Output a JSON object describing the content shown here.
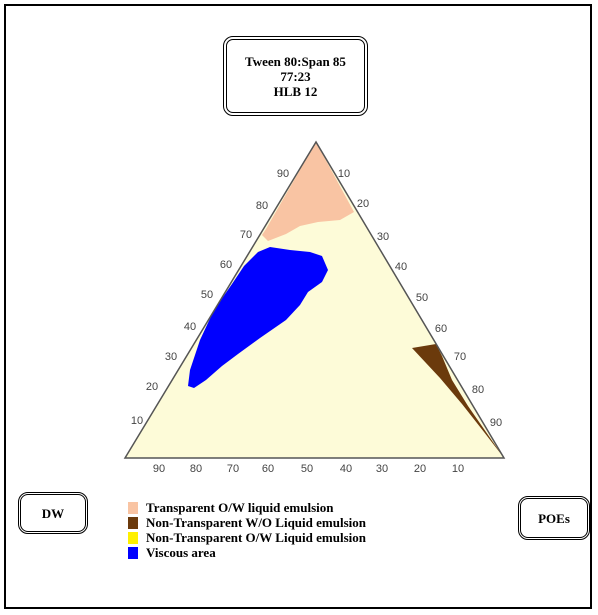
{
  "title_box": {
    "line1": "Tween 80:Span 85",
    "line2": "77:23",
    "line3": "HLB 12"
  },
  "corner_labels": {
    "left": "DW",
    "right": "POEs"
  },
  "left_axis_ticks": [
    "90",
    "80",
    "70",
    "60",
    "50",
    "40",
    "30",
    "20",
    "10"
  ],
  "right_axis_ticks": [
    "10",
    "20",
    "30",
    "40",
    "50",
    "60",
    "70",
    "80",
    "90"
  ],
  "bottom_axis_ticks": [
    "90",
    "80",
    "70",
    "60",
    "50",
    "40",
    "30",
    "20",
    "10"
  ],
  "legend": [
    {
      "label": "Transparent O/W liquid emulsion",
      "color": "#f9c4a3"
    },
    {
      "label": "Non-Transparent W/O Liquid emulsion",
      "color": "#6b3a0c"
    },
    {
      "label": "Non-Transparent O/W Liquid emulsion",
      "color": "#fff000"
    },
    {
      "label": "Viscous area",
      "color": "#0000ff"
    }
  ],
  "colors": {
    "background_region": "#ffffd9",
    "transparent_ow": "#f9c4a3",
    "nontransparent_wo": "#6b3a0c",
    "viscous": "#0000ff"
  }
}
